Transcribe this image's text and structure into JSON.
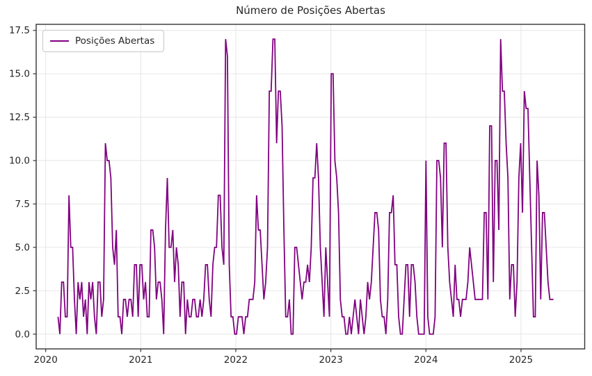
{
  "figure": {
    "title": "Número de Posições Abertas",
    "legend_label": "Posições Abertas"
  },
  "chart_data": {
    "type": "line",
    "title": "Número de Posições Abertas",
    "xlabel": "",
    "ylabel": "",
    "grid": true,
    "legend_position": "upper left",
    "line_color": "#800080",
    "grid_color": "#e6e6e6",
    "spine_color": "#333333",
    "tick_label_color": "#262626",
    "background": "#ffffff",
    "xlim": [
      2019.9,
      2025.67
    ],
    "ylim": [
      -0.85,
      17.85
    ],
    "x_ticks": [
      2020,
      2021,
      2022,
      2023,
      2024,
      2025
    ],
    "x_tick_labels": [
      "2020",
      "2021",
      "2022",
      "2023",
      "2024",
      "2025"
    ],
    "y_ticks": [
      0,
      2.5,
      5,
      7.5,
      10,
      12.5,
      15,
      17.5
    ],
    "y_tick_labels": [
      "0.0",
      "2.5",
      "5.0",
      "7.5",
      "10.0",
      "12.5",
      "15.0",
      "17.5"
    ],
    "series": [
      {
        "name": "Posições Abertas",
        "color": "#800080",
        "frequency": "weekly",
        "x_start_year": 2020.13,
        "x_step_years": 0.01916,
        "values": [
          1,
          0,
          3,
          3,
          1,
          1,
          8,
          5,
          5,
          2,
          0,
          3,
          2,
          3,
          1,
          2,
          0,
          3,
          2,
          3,
          1,
          0,
          3,
          3,
          1,
          2,
          11,
          10,
          10,
          9,
          5,
          4,
          6,
          1,
          1,
          0,
          2,
          2,
          1,
          2,
          2,
          1,
          4,
          4,
          1,
          4,
          4,
          2,
          3,
          1,
          1,
          6,
          6,
          5,
          2,
          3,
          3,
          2,
          0,
          6,
          9,
          5,
          5,
          6,
          3,
          5,
          4,
          1,
          3,
          3,
          0,
          2,
          1,
          1,
          2,
          2,
          1,
          1,
          2,
          1,
          2,
          4,
          4,
          2,
          1,
          4,
          5,
          5,
          8,
          8,
          5,
          4,
          17,
          16,
          4,
          1,
          1,
          0,
          0,
          1,
          1,
          1,
          0,
          1,
          1,
          2,
          2,
          2,
          3,
          8,
          6,
          6,
          4,
          2,
          3,
          5,
          14,
          14,
          17,
          17,
          11,
          14,
          14,
          12,
          6,
          1,
          1,
          2,
          0,
          0,
          5,
          5,
          4,
          3,
          2,
          3,
          3,
          4,
          3,
          5,
          9,
          9,
          11,
          9,
          5,
          3,
          1,
          5,
          3,
          1,
          15,
          15,
          10,
          9,
          7,
          2,
          1,
          1,
          0,
          0,
          1,
          0,
          1,
          2,
          1,
          0,
          2,
          1,
          0,
          1,
          3,
          2,
          3,
          5,
          7,
          7,
          6,
          2,
          1,
          1,
          0,
          2,
          7,
          7,
          8,
          4,
          4,
          1,
          0,
          0,
          2,
          4,
          4,
          1,
          4,
          4,
          3,
          1,
          0,
          0,
          0,
          0,
          10,
          1,
          0,
          0,
          0,
          1,
          10,
          10,
          9,
          5,
          11,
          11,
          5,
          3,
          2,
          1,
          4,
          2,
          2,
          1,
          2,
          2,
          2,
          3,
          5,
          4,
          3,
          2,
          2,
          2,
          2,
          2,
          7,
          7,
          2,
          12,
          12,
          3,
          10,
          10,
          6,
          17,
          14,
          14,
          11,
          9,
          2,
          4,
          4,
          1,
          3,
          9,
          11,
          7,
          14,
          13,
          13,
          9,
          5,
          1,
          1,
          10,
          8,
          2,
          7,
          7,
          5,
          3,
          2,
          2,
          2
        ]
      }
    ]
  }
}
